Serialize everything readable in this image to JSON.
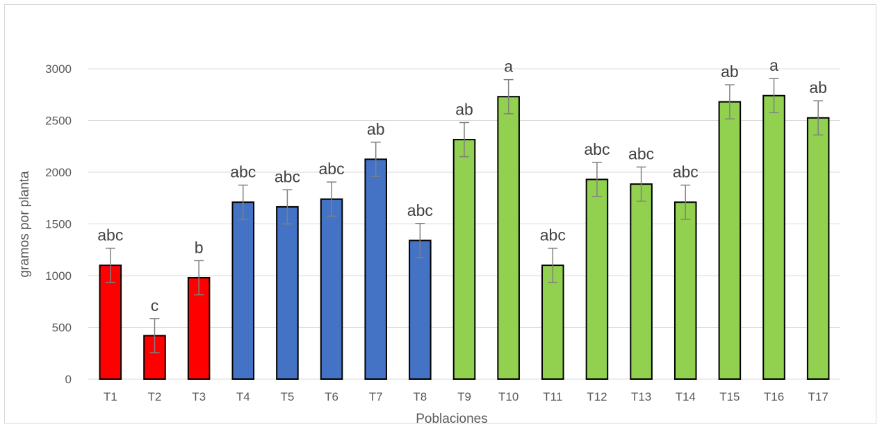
{
  "chart_data": {
    "type": "bar",
    "xlabel": "Poblaciones",
    "ylabel": "gramos por planta",
    "ylim": [
      0,
      3000
    ],
    "yticks": [
      "0",
      "500",
      "1000",
      "1500",
      "2000",
      "2500",
      "3000"
    ],
    "grid": true,
    "error_bars": true,
    "categories": [
      "T1",
      "T2",
      "T3",
      "T4",
      "T5",
      "T6",
      "T7",
      "T8",
      "T9",
      "T10",
      "T11",
      "T12",
      "T13",
      "T14",
      "T15",
      "T16",
      "T17"
    ],
    "values": [
      1100,
      420,
      980,
      1710,
      1665,
      1740,
      2125,
      1340,
      2315,
      2730,
      1100,
      1930,
      1885,
      1710,
      2680,
      2740,
      2525
    ],
    "errors": [
      165,
      165,
      165,
      165,
      165,
      165,
      165,
      165,
      165,
      165,
      165,
      165,
      165,
      165,
      165,
      165,
      165
    ],
    "significance": [
      "abc",
      "c",
      "b",
      "abc",
      "abc",
      "abc",
      "ab",
      "abc",
      "ab",
      "a",
      "abc",
      "abc",
      "abc",
      "abc",
      "ab",
      "a",
      "ab"
    ],
    "colors": [
      "#ff0000",
      "#ff0000",
      "#ff0000",
      "#4472c4",
      "#4472c4",
      "#4472c4",
      "#4472c4",
      "#4472c4",
      "#92d050",
      "#92d050",
      "#92d050",
      "#92d050",
      "#92d050",
      "#92d050",
      "#92d050",
      "#92d050",
      "#92d050"
    ],
    "gridline_color": "#d9d9d9",
    "error_bar_color": "#808080"
  }
}
